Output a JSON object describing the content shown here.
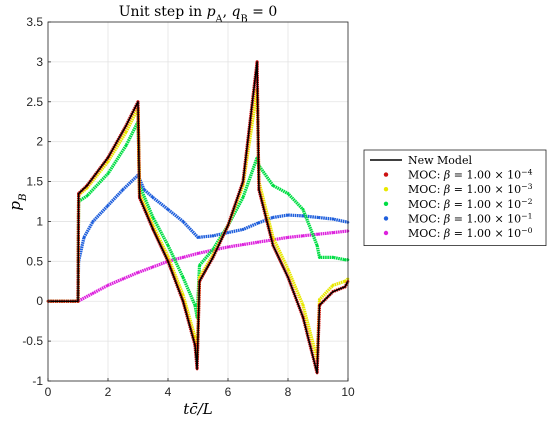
{
  "chart_data": {
    "type": "line",
    "title": "Unit step in p_A, q_B = 0",
    "title_parts": [
      "Unit step in ",
      "p",
      "A",
      ", ",
      "q",
      "B",
      " = 0"
    ],
    "xlabel": "tc̄/L",
    "ylabel": "p_B",
    "ylabel_parts": [
      "p",
      "B"
    ],
    "xlim": [
      0,
      10
    ],
    "ylim": [
      -1,
      3.5
    ],
    "xticks": [
      0,
      2,
      4,
      6,
      8,
      10
    ],
    "yticks": [
      -1,
      -0.5,
      0,
      0.5,
      1,
      1.5,
      2,
      2.5,
      3,
      3.5
    ],
    "grid": true,
    "legend_position": "outside-right",
    "series": [
      {
        "name": "New Model",
        "label_parts": [
          "New Model"
        ],
        "color": "#000000",
        "style": "line",
        "x": [
          0,
          1,
          1.02,
          1.3,
          2,
          2.6,
          3,
          3.05,
          3.5,
          4,
          4.5,
          4.9,
          4.97,
          5.05,
          5.5,
          6,
          6.5,
          6.97,
          7.03,
          7.5,
          8,
          8.5,
          8.97,
          9.05,
          9.5,
          9.9,
          10
        ],
        "y": [
          0,
          0,
          1.35,
          1.45,
          1.8,
          2.2,
          2.5,
          1.3,
          0.9,
          0.5,
          0,
          -0.55,
          -0.85,
          0.25,
          0.55,
          0.95,
          1.5,
          3.0,
          1.4,
          0.7,
          0.3,
          -0.2,
          -0.9,
          -0.05,
          0.12,
          0.18,
          0.25
        ]
      },
      {
        "name": "MOC β=1e-4",
        "label_parts": [
          "MOC: ",
          "β",
          " = 1.00 × 10",
          "−4"
        ],
        "color": "#cc1111",
        "style": "dots",
        "x": [
          0,
          1,
          1.02,
          1.3,
          2,
          2.6,
          3,
          3.05,
          3.5,
          4,
          4.5,
          4.9,
          4.97,
          5.05,
          5.5,
          6,
          6.5,
          6.97,
          7.03,
          7.5,
          8,
          8.5,
          8.97,
          9.05,
          9.5,
          9.9,
          10
        ],
        "y": [
          0,
          0,
          1.35,
          1.45,
          1.8,
          2.2,
          2.5,
          1.3,
          0.9,
          0.5,
          0,
          -0.55,
          -0.85,
          0.25,
          0.55,
          0.95,
          1.5,
          3.0,
          1.4,
          0.7,
          0.3,
          -0.2,
          -0.9,
          -0.05,
          0.12,
          0.18,
          0.25
        ]
      },
      {
        "name": "MOC β=1e-3",
        "label_parts": [
          "MOC: ",
          "β",
          " = 1.00 × 10",
          "−3"
        ],
        "color": "#e8e800",
        "style": "dots",
        "x": [
          0,
          1,
          1.02,
          1.3,
          2,
          2.6,
          3,
          3.05,
          3.5,
          4,
          4.5,
          4.9,
          4.97,
          5.05,
          5.5,
          6,
          6.5,
          6.97,
          7.03,
          7.5,
          8,
          8.5,
          8.97,
          9.05,
          9.5,
          9.9,
          10
        ],
        "y": [
          0,
          0,
          1.33,
          1.42,
          1.75,
          2.12,
          2.42,
          1.35,
          0.95,
          0.56,
          0.08,
          -0.45,
          -0.7,
          0.3,
          0.58,
          0.95,
          1.45,
          2.65,
          1.5,
          0.8,
          0.4,
          -0.05,
          -0.72,
          0.02,
          0.2,
          0.25,
          0.28
        ]
      },
      {
        "name": "MOC β=1e-2",
        "label_parts": [
          "MOC: ",
          "β",
          " = 1.00 × 10",
          "−2"
        ],
        "color": "#00dd44",
        "style": "dots",
        "x": [
          0,
          1,
          1.02,
          1.3,
          2,
          2.6,
          3,
          3.05,
          3.5,
          4,
          4.5,
          4.9,
          4.97,
          5.05,
          5.5,
          6,
          6.5,
          6.97,
          7.03,
          7.5,
          8,
          8.5,
          8.97,
          9.05,
          9.5,
          9.9,
          10
        ],
        "y": [
          0,
          0,
          1.25,
          1.32,
          1.6,
          1.95,
          2.25,
          1.45,
          1.05,
          0.7,
          0.3,
          -0.05,
          -0.2,
          0.45,
          0.65,
          0.95,
          1.3,
          1.8,
          1.7,
          1.45,
          1.35,
          1.15,
          0.7,
          0.55,
          0.55,
          0.52,
          0.52
        ]
      },
      {
        "name": "MOC β=1e-1",
        "label_parts": [
          "MOC: ",
          "β",
          " = 1.00 × 10",
          "−1"
        ],
        "color": "#1f5fdc",
        "style": "dots",
        "x": [
          0,
          1,
          1.02,
          1.2,
          1.5,
          2,
          2.5,
          3,
          3.2,
          3.5,
          4,
          4.5,
          5,
          5.5,
          6,
          6.5,
          7,
          7.5,
          8,
          8.5,
          9,
          9.5,
          10
        ],
        "y": [
          0,
          0,
          0.5,
          0.8,
          1.0,
          1.2,
          1.4,
          1.58,
          1.4,
          1.3,
          1.15,
          1.0,
          0.8,
          0.82,
          0.86,
          0.9,
          0.98,
          1.05,
          1.08,
          1.07,
          1.05,
          1.03,
          0.99
        ]
      },
      {
        "name": "MOC β=1e0",
        "label_parts": [
          "MOC: ",
          "β",
          " = 1.00 × 10",
          "−0"
        ],
        "color": "#dd22dd",
        "style": "dots",
        "x": [
          0,
          1,
          1.5,
          2,
          2.5,
          3,
          3.5,
          4,
          4.5,
          5,
          5.5,
          6,
          6.5,
          7,
          7.5,
          8,
          8.5,
          9,
          9.5,
          10
        ],
        "y": [
          0,
          0,
          0.1,
          0.2,
          0.28,
          0.36,
          0.43,
          0.5,
          0.55,
          0.6,
          0.64,
          0.68,
          0.71,
          0.74,
          0.77,
          0.8,
          0.82,
          0.84,
          0.86,
          0.88
        ]
      }
    ]
  }
}
